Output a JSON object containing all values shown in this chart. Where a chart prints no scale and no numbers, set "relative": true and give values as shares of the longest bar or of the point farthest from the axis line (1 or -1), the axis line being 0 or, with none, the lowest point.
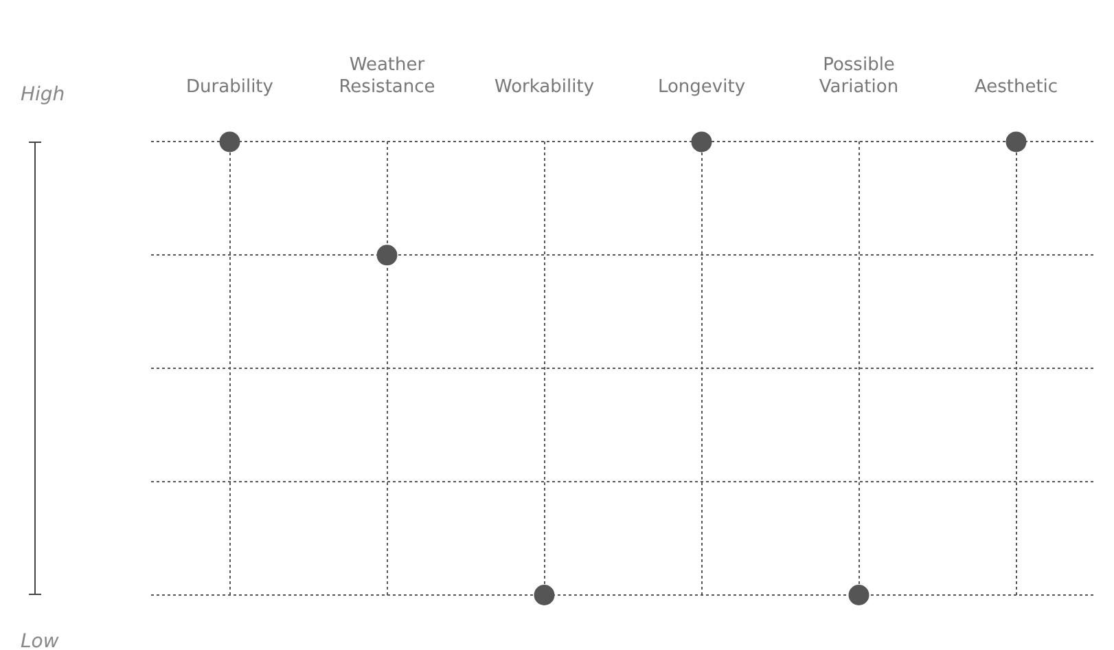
{
  "chart_data": {
    "type": "scatter",
    "categories": [
      "Durability",
      "Weather Resistance",
      "Workability",
      "Longevity",
      "Possible Variation",
      "Aesthetic"
    ],
    "series": [
      {
        "color": "#555555",
        "values": [
          1,
          0.75,
          0,
          1,
          0,
          1
        ]
      }
    ],
    "relative": true,
    "annotations": [
      "High",
      "Low"
    ],
    "grid": true,
    "marker": "circle",
    "legend": false
  }
}
